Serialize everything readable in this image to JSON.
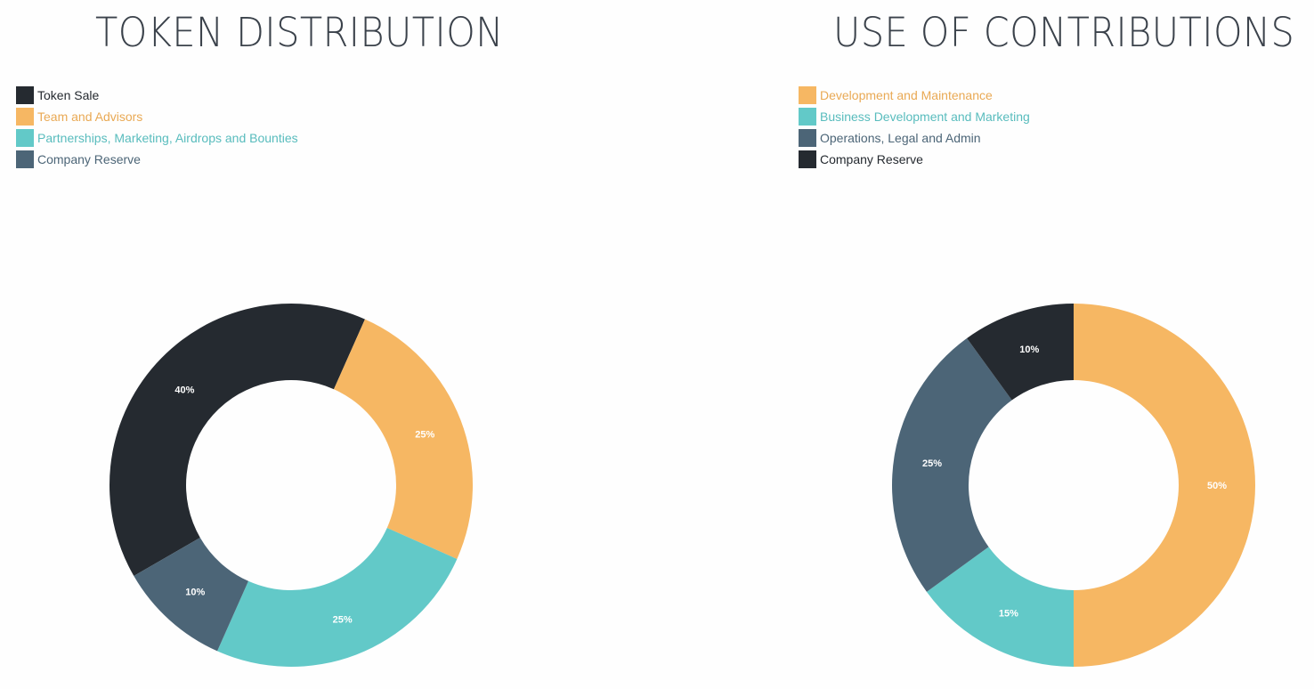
{
  "colors": {
    "dark": "#252a30",
    "orange": "#f6b763",
    "teal": "#62c9c8",
    "slate": "#4c6577"
  },
  "chart_data": [
    {
      "type": "pie",
      "title": "TOKEN DISTRIBUTION",
      "legend_placement": "top-left",
      "rotation_deg": -120,
      "slices": [
        {
          "label": "Token Sale",
          "value": 40,
          "data_label": "40%",
          "color": "#252a30",
          "text_color": "#252a30"
        },
        {
          "label": "Team and Advisors",
          "value": 25,
          "data_label": "25%",
          "color": "#f6b763",
          "text_color": "#e9a954"
        },
        {
          "label": "Partnerships, Marketing, Airdrops and Bounties",
          "value": 25,
          "data_label": "25%",
          "color": "#62c9c8",
          "text_color": "#58bcbd"
        },
        {
          "label": "Company Reserve",
          "value": 10,
          "data_label": "10%",
          "color": "#4c6577",
          "text_color": "#4c6577"
        }
      ]
    },
    {
      "type": "pie",
      "title": "USE OF CONTRIBUTIONS",
      "legend_placement": "top-left",
      "rotation_deg": 0,
      "slices": [
        {
          "label": "Development and Maintenance",
          "value": 50,
          "data_label": "50%",
          "color": "#f6b763",
          "text_color": "#e9a954"
        },
        {
          "label": "Business Development and Marketing",
          "value": 15,
          "data_label": "15%",
          "color": "#62c9c8",
          "text_color": "#58bcbd"
        },
        {
          "label": "Operations, Legal and Admin",
          "value": 25,
          "data_label": "25%",
          "color": "#4c6577",
          "text_color": "#4c6577"
        },
        {
          "label": "Company Reserve",
          "value": 10,
          "data_label": "10%",
          "color": "#252a30",
          "text_color": "#252a30"
        }
      ]
    }
  ]
}
